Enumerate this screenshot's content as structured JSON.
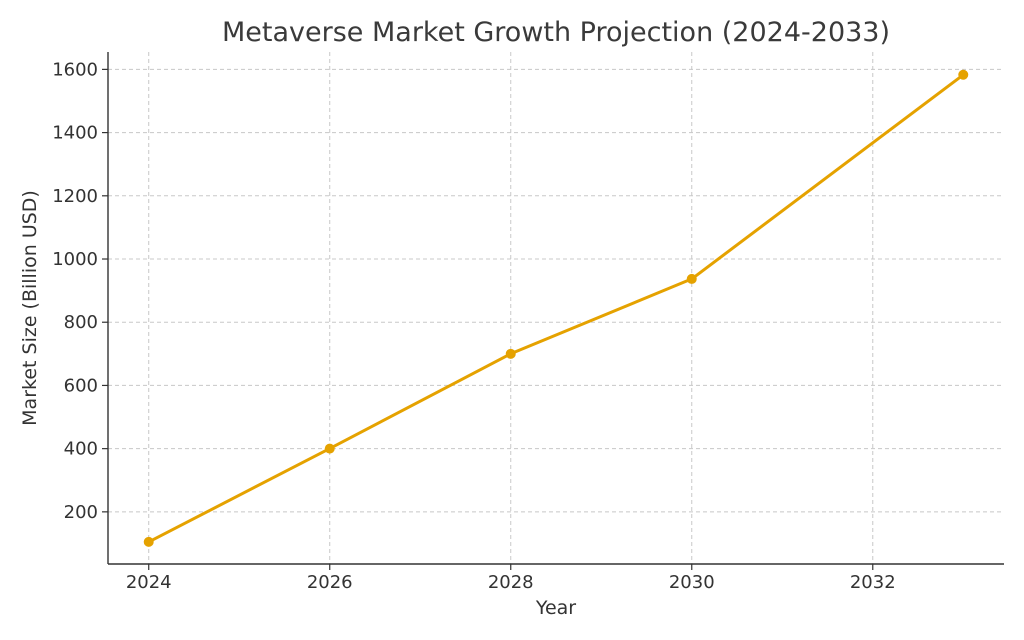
{
  "chart_data": {
    "type": "line",
    "title": "Metaverse Market Growth Projection (2024-2033)",
    "xlabel": "Year",
    "ylabel": "Market Size (Billion USD)",
    "x": [
      2024,
      2026,
      2028,
      2030,
      2033
    ],
    "series": [
      {
        "values": [
          105,
          400,
          700,
          937,
          1583
        ]
      }
    ],
    "xlim": [
      2023.55,
      2033.45
    ],
    "ylim": [
      35,
      1655
    ],
    "xticks": [
      2024,
      2026,
      2028,
      2030,
      2032
    ],
    "yticks": [
      200,
      400,
      600,
      800,
      1000,
      1200,
      1400,
      1600
    ],
    "grid": true,
    "colors": {
      "line": "#E5A200",
      "text": "#333333",
      "title": "#3a3a3a",
      "grid": "#c8c8c8"
    }
  }
}
